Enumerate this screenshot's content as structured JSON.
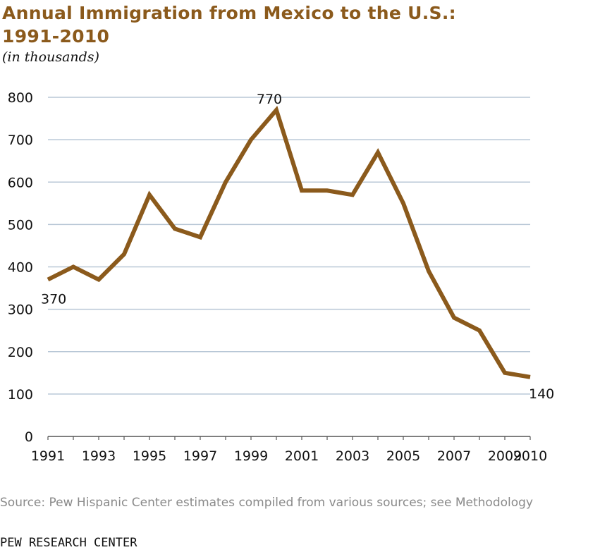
{
  "header": {
    "title_line1": "Annual Immigration from Mexico to the U.S.:",
    "title_line2": "1991-2010",
    "subtitle": "(in thousands)"
  },
  "footer": {
    "source": "Source: Pew Hispanic Center estimates compiled from various sources; see Methodology",
    "credit": "PEW RESEARCH CENTER"
  },
  "colors": {
    "line": "#8b5a1c",
    "grid": "#b8c7d6",
    "axis": "#555555",
    "title": "#8b5a1c"
  },
  "chart_data": {
    "type": "line",
    "title": "Annual Immigration from Mexico to the U.S.: 1991-2010",
    "subtitle": "(in thousands)",
    "xlabel": "",
    "ylabel": "",
    "x": [
      1991,
      1992,
      1993,
      1994,
      1995,
      1996,
      1997,
      1998,
      1999,
      2000,
      2001,
      2002,
      2003,
      2004,
      2005,
      2006,
      2007,
      2008,
      2009,
      2010
    ],
    "values": [
      370,
      400,
      370,
      430,
      570,
      490,
      470,
      600,
      700,
      770,
      580,
      580,
      570,
      670,
      550,
      390,
      280,
      250,
      150,
      140
    ],
    "xlim": [
      1991,
      2010
    ],
    "ylim": [
      0,
      800
    ],
    "xticks": [
      "1991",
      "1993",
      "1995",
      "1997",
      "1999",
      "2001",
      "2003",
      "2005",
      "2007",
      "2009",
      "2010"
    ],
    "yticks": [
      "0",
      "100",
      "200",
      "300",
      "400",
      "500",
      "600",
      "700",
      "800"
    ],
    "grid": true,
    "legend": "none",
    "annotations": [
      {
        "x": 1991,
        "y": 370,
        "label": "370"
      },
      {
        "x": 2000,
        "y": 770,
        "label": "770"
      },
      {
        "x": 2010,
        "y": 140,
        "label": "140"
      }
    ]
  }
}
